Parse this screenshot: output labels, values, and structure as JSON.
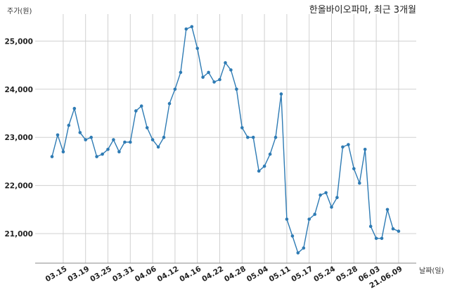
{
  "chart_data": {
    "type": "line",
    "title": "한올바이오파마, 최근 3개월",
    "ylabel": "주가(원)",
    "xlabel": "날짜(일)",
    "ylim": [
      20400,
      25600
    ],
    "yticks": [
      21000,
      22000,
      23000,
      24000,
      25000
    ],
    "ytick_labels": [
      "21,000",
      "22,000",
      "23,000",
      "24,000",
      "25,000"
    ],
    "xtick_labels": [
      "03.15",
      "03.19",
      "03.25",
      "03.31",
      "04.06",
      "04.12",
      "04.16",
      "04.22",
      "04.28",
      "05.04",
      "05.11",
      "05.17",
      "05.24",
      "05.28",
      "06.03",
      "21.06.09"
    ],
    "xtick_positions": [
      2,
      6,
      10,
      14,
      18,
      22,
      26,
      30,
      34,
      38,
      42,
      46,
      50,
      54,
      58,
      62
    ],
    "grid": true,
    "line_color": "#2e7bb4",
    "series": [
      {
        "values": [
          22600,
          23050,
          22700,
          23250,
          23600,
          23100,
          22950,
          23000,
          22600,
          22650,
          22750,
          22950,
          22700,
          22900,
          22900,
          23550,
          23650,
          23200,
          22950,
          22800,
          23000,
          23700,
          24000,
          24350,
          25250,
          25300,
          24850,
          24250,
          24350,
          24150,
          24200,
          24550,
          24400,
          24000,
          23200,
          23000,
          23000,
          22300,
          22400,
          22650,
          23000,
          23900,
          21300,
          20950,
          20600,
          20700,
          21300,
          21400,
          21800,
          21850,
          21550,
          21750,
          22800,
          22850,
          22350,
          22050,
          22750,
          21150,
          20900,
          20900,
          21500,
          21100,
          21050
        ]
      }
    ]
  }
}
